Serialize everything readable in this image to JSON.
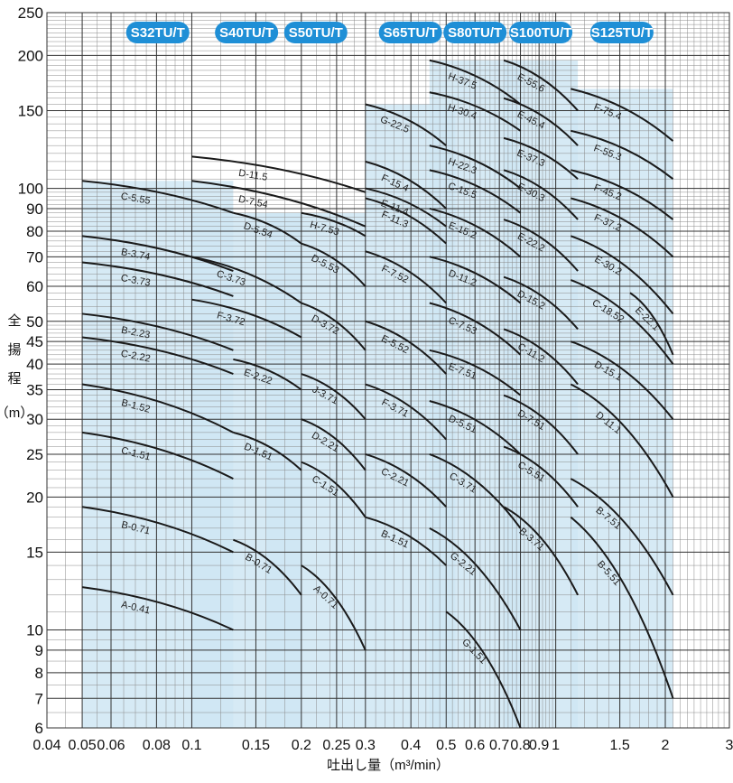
{
  "chart_data": {
    "type": "line",
    "title": "",
    "xlabel": "吐出し量（m³/min）",
    "ylabel_chars": [
      "全",
      "揚",
      "程",
      "（m）"
    ],
    "x_scale": "log",
    "y_scale": "log",
    "xlim": [
      0.04,
      3
    ],
    "ylim": [
      6,
      250
    ],
    "x_ticks": [
      {
        "v": 0.04,
        "label": "0.04"
      },
      {
        "v": 0.05,
        "label": "0.05"
      },
      {
        "v": 0.06,
        "label": "0.06"
      },
      {
        "v": 0.08,
        "label": "0.08"
      },
      {
        "v": 0.1,
        "label": "0.1"
      },
      {
        "v": 0.15,
        "label": "0.15"
      },
      {
        "v": 0.2,
        "label": "0.2"
      },
      {
        "v": 0.25,
        "label": "0.25"
      },
      {
        "v": 0.3,
        "label": "0.3"
      },
      {
        "v": 0.4,
        "label": "0.4"
      },
      {
        "v": 0.5,
        "label": "0.5"
      },
      {
        "v": 0.6,
        "label": "0.6"
      },
      {
        "v": 0.7,
        "label": "0.7"
      },
      {
        "v": 0.8,
        "label": "0.8"
      },
      {
        "v": 0.9,
        "label": "0.9"
      },
      {
        "v": 1,
        "label": "1"
      },
      {
        "v": 1.5,
        "label": "1.5"
      },
      {
        "v": 2,
        "label": "2"
      },
      {
        "v": 3,
        "label": "3"
      }
    ],
    "y_ticks": [
      6,
      7,
      8,
      9,
      10,
      15,
      20,
      25,
      30,
      35,
      40,
      45,
      50,
      60,
      70,
      80,
      90,
      100,
      150,
      200,
      250
    ],
    "model_groups": [
      {
        "name": "S32TU/T",
        "x_range": [
          0.05,
          0.13
        ]
      },
      {
        "name": "S40TU/T",
        "x_range": [
          0.1,
          0.2
        ]
      },
      {
        "name": "S50TU/T",
        "x_range": [
          0.16,
          0.3
        ]
      },
      {
        "name": "S65TU/T",
        "x_range": [
          0.3,
          0.53
        ]
      },
      {
        "name": "S80TU/T",
        "x_range": [
          0.45,
          0.8
        ]
      },
      {
        "name": "S100TU/T",
        "x_range": [
          0.72,
          1.15
        ]
      },
      {
        "name": "S125TU/T",
        "x_range": [
          1.1,
          2.1
        ]
      }
    ],
    "series": [
      {
        "name": "C-5.55",
        "x": [
          0.05,
          0.13
        ],
        "y": [
          104,
          88
        ]
      },
      {
        "name": "B-3.74",
        "x": [
          0.05,
          0.13
        ],
        "y": [
          78,
          65
        ]
      },
      {
        "name": "C-3.73",
        "x": [
          0.05,
          0.13
        ],
        "y": [
          68,
          57
        ]
      },
      {
        "name": "B-2.23",
        "x": [
          0.05,
          0.13
        ],
        "y": [
          52,
          43
        ]
      },
      {
        "name": "C-2.22",
        "x": [
          0.05,
          0.13
        ],
        "y": [
          46,
          38
        ]
      },
      {
        "name": "B-1.52",
        "x": [
          0.05,
          0.13
        ],
        "y": [
          36,
          28
        ]
      },
      {
        "name": "C-1.51",
        "x": [
          0.05,
          0.13
        ],
        "y": [
          28,
          22
        ]
      },
      {
        "name": "B-0.71",
        "x": [
          0.05,
          0.13
        ],
        "y": [
          19,
          15
        ]
      },
      {
        "name": "A-0.41",
        "x": [
          0.05,
          0.13
        ],
        "y": [
          12.5,
          10
        ]
      },
      {
        "name": "D-11.5",
        "x": [
          0.1,
          0.3
        ],
        "y": [
          118,
          98
        ]
      },
      {
        "name": "D-7.54",
        "x": [
          0.1,
          0.3
        ],
        "y": [
          104,
          82
        ]
      },
      {
        "name": "D-5.54",
        "x": [
          0.13,
          0.2
        ],
        "y": [
          88,
          75
        ]
      },
      {
        "name": "H-7.53",
        "x": [
          0.2,
          0.3
        ],
        "y": [
          88,
          78
        ]
      },
      {
        "name": "C-3.73",
        "x": [
          0.1,
          0.2
        ],
        "y": [
          70,
          55
        ]
      },
      {
        "name": "D-5.53",
        "x": [
          0.2,
          0.3
        ],
        "y": [
          75,
          60
        ]
      },
      {
        "name": "F-3.72",
        "x": [
          0.1,
          0.2
        ],
        "y": [
          56,
          46
        ]
      },
      {
        "name": "D-3.72",
        "x": [
          0.2,
          0.3
        ],
        "y": [
          55,
          43
        ]
      },
      {
        "name": "E-2.22",
        "x": [
          0.13,
          0.2
        ],
        "y": [
          41,
          35
        ]
      },
      {
        "name": "J-3.71",
        "x": [
          0.2,
          0.3
        ],
        "y": [
          38,
          30
        ]
      },
      {
        "name": "D-2.21",
        "x": [
          0.2,
          0.3
        ],
        "y": [
          30,
          23
        ]
      },
      {
        "name": "D-1.51",
        "x": [
          0.13,
          0.2
        ],
        "y": [
          28,
          23
        ]
      },
      {
        "name": "C-1.51",
        "x": [
          0.2,
          0.3
        ],
        "y": [
          24,
          18
        ]
      },
      {
        "name": "B-0.71",
        "x": [
          0.13,
          0.2
        ],
        "y": [
          16,
          12
        ]
      },
      {
        "name": "A-0.71",
        "x": [
          0.2,
          0.3
        ],
        "y": [
          14,
          9
        ]
      },
      {
        "name": "G-22.5",
        "x": [
          0.3,
          0.5
        ],
        "y": [
          155,
          125
        ]
      },
      {
        "name": "F-15.4",
        "x": [
          0.3,
          0.5
        ],
        "y": [
          115,
          90
        ]
      },
      {
        "name": "E-11.4",
        "x": [
          0.3,
          0.5
        ],
        "y": [
          100,
          82
        ]
      },
      {
        "name": "F-11.3",
        "x": [
          0.3,
          0.5
        ],
        "y": [
          95,
          75
        ]
      },
      {
        "name": "F-7.52",
        "x": [
          0.3,
          0.5
        ],
        "y": [
          72,
          55
        ]
      },
      {
        "name": "E-5.52",
        "x": [
          0.3,
          0.5
        ],
        "y": [
          50,
          38
        ]
      },
      {
        "name": "F-3.71",
        "x": [
          0.3,
          0.5
        ],
        "y": [
          36,
          27
        ]
      },
      {
        "name": "C-2.21",
        "x": [
          0.3,
          0.5
        ],
        "y": [
          25,
          19
        ]
      },
      {
        "name": "B-1.51",
        "x": [
          0.3,
          0.5
        ],
        "y": [
          18,
          14
        ]
      },
      {
        "name": "H-37.5",
        "x": [
          0.45,
          0.8
        ],
        "y": [
          195,
          155
        ]
      },
      {
        "name": "H-30.4",
        "x": [
          0.45,
          0.8
        ],
        "y": [
          165,
          135
        ]
      },
      {
        "name": "H-22.3",
        "x": [
          0.45,
          0.8
        ],
        "y": [
          125,
          100
        ]
      },
      {
        "name": "C-15.5",
        "x": [
          0.45,
          0.8
        ],
        "y": [
          110,
          88
        ]
      },
      {
        "name": "E-15.2",
        "x": [
          0.45,
          0.8
        ],
        "y": [
          90,
          70
        ]
      },
      {
        "name": "D-11.2",
        "x": [
          0.45,
          0.8
        ],
        "y": [
          70,
          55
        ]
      },
      {
        "name": "C-7.53",
        "x": [
          0.45,
          0.8
        ],
        "y": [
          55,
          42
        ]
      },
      {
        "name": "E-7.51",
        "x": [
          0.45,
          0.8
        ],
        "y": [
          43,
          34
        ]
      },
      {
        "name": "D-5.51",
        "x": [
          0.45,
          0.8
        ],
        "y": [
          33,
          25
        ]
      },
      {
        "name": "C-3.71",
        "x": [
          0.45,
          0.8
        ],
        "y": [
          25,
          17
        ]
      },
      {
        "name": "G-2.21",
        "x": [
          0.45,
          0.8
        ],
        "y": [
          17,
          10
        ]
      },
      {
        "name": "G-1.51",
        "x": [
          0.5,
          0.8
        ],
        "y": [
          11,
          6
        ]
      },
      {
        "name": "E-55.6",
        "x": [
          0.72,
          1.15
        ],
        "y": [
          195,
          150
        ]
      },
      {
        "name": "E-45.4",
        "x": [
          0.72,
          1.15
        ],
        "y": [
          160,
          125
        ]
      },
      {
        "name": "E-37.3",
        "x": [
          0.72,
          1.15
        ],
        "y": [
          130,
          105
        ]
      },
      {
        "name": "E-30.3",
        "x": [
          0.72,
          1.15
        ],
        "y": [
          110,
          85
        ]
      },
      {
        "name": "E-22.2",
        "x": [
          0.72,
          1.15
        ],
        "y": [
          85,
          65
        ]
      },
      {
        "name": "D-15.2",
        "x": [
          0.72,
          1.15
        ],
        "y": [
          63,
          48
        ]
      },
      {
        "name": "C-11.2",
        "x": [
          0.72,
          1.15
        ],
        "y": [
          48,
          36
        ]
      },
      {
        "name": "D-7.51",
        "x": [
          0.72,
          1.15
        ],
        "y": [
          34,
          25
        ]
      },
      {
        "name": "C-5.51",
        "x": [
          0.72,
          1.15
        ],
        "y": [
          26,
          19
        ]
      },
      {
        "name": "B-3.71",
        "x": [
          0.72,
          1.15
        ],
        "y": [
          19,
          12
        ]
      },
      {
        "name": "F-75.4",
        "x": [
          1.1,
          2.1
        ],
        "y": [
          168,
          128
        ]
      },
      {
        "name": "F-55.3",
        "x": [
          1.1,
          2.1
        ],
        "y": [
          135,
          105
        ]
      },
      {
        "name": "F-45.2",
        "x": [
          1.1,
          2.1
        ],
        "y": [
          110,
          85
        ]
      },
      {
        "name": "F-37.2",
        "x": [
          1.1,
          2.1
        ],
        "y": [
          95,
          70
        ]
      },
      {
        "name": "E-30.2",
        "x": [
          1.1,
          2.1
        ],
        "y": [
          78,
          52
        ]
      },
      {
        "name": "C-18.52",
        "x": [
          1.1,
          2.1
        ],
        "y": [
          62,
          40
        ]
      },
      {
        "name": "E-22.1",
        "x": [
          1.6,
          2.1
        ],
        "y": [
          58,
          42
        ]
      },
      {
        "name": "D-15.1",
        "x": [
          1.1,
          2.1
        ],
        "y": [
          45,
          30
        ]
      },
      {
        "name": "D-11.1",
        "x": [
          1.1,
          2.1
        ],
        "y": [
          36,
          20
        ]
      },
      {
        "name": "B-7.51",
        "x": [
          1.1,
          2.1
        ],
        "y": [
          22,
          12
        ]
      },
      {
        "name": "B-5.51",
        "x": [
          1.1,
          2.1
        ],
        "y": [
          18,
          7
        ]
      }
    ],
    "grid": true,
    "colors": {
      "pill": "#1f8fd6",
      "region": "#cfe6f3",
      "curve": "#1a1a1a",
      "grid": "#444444"
    }
  }
}
